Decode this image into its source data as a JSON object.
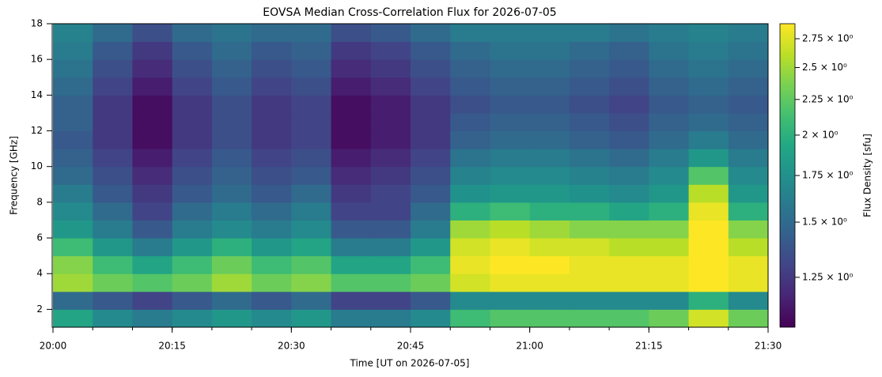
{
  "chart_data": {
    "type": "heatmap",
    "title": "EOVSA Median Cross-Correlation Flux for 2026-07-05",
    "xlabel": "Time [UT on 2026-07-05]",
    "ylabel": "Frequency [GHz]",
    "colorbar_label": "Flux Density [sfu]",
    "colormap": "viridis",
    "color_scale": "log",
    "clim": [
      1.06,
      2.89
    ],
    "cticks": [
      {
        "value": 1.25,
        "label": "1.25 × 10⁰"
      },
      {
        "value": 1.5,
        "label": "1.5 × 10⁰"
      },
      {
        "value": 1.75,
        "label": "1.75 × 10⁰"
      },
      {
        "value": 2,
        "label": "2 × 10⁰"
      },
      {
        "value": 2.25,
        "label": "2.25 × 10⁰"
      },
      {
        "value": 2.5,
        "label": "2.5 × 10⁰"
      },
      {
        "value": 2.75,
        "label": "2.75 × 10⁰"
      }
    ],
    "xlim": [
      "20:00",
      "21:30"
    ],
    "xticks": [
      "20:00",
      "20:15",
      "20:30",
      "20:45",
      "21:00",
      "21:15",
      "21:30"
    ],
    "ylim": [
      1,
      18
    ],
    "yticks": [
      2,
      4,
      6,
      8,
      10,
      12,
      14,
      16,
      18
    ],
    "x": [
      "20:00",
      "20:05",
      "20:10",
      "20:15",
      "20:20",
      "20:25",
      "20:30",
      "20:35",
      "20:40",
      "20:45",
      "20:50",
      "20:55",
      "21:00",
      "21:05",
      "21:10",
      "21:15",
      "21:20",
      "21:25"
    ],
    "y": [
      1,
      2,
      3,
      4,
      5,
      6,
      7,
      8,
      9,
      10,
      11,
      12,
      13,
      14,
      15,
      16,
      17
    ],
    "values": [
      [
        1.9,
        1.7,
        1.6,
        1.7,
        1.8,
        1.7,
        1.8,
        1.6,
        1.6,
        1.7,
        2.1,
        2.2,
        2.2,
        2.2,
        2.2,
        2.3,
        2.7,
        2.3
      ],
      [
        1.5,
        1.4,
        1.3,
        1.4,
        1.5,
        1.4,
        1.5,
        1.3,
        1.3,
        1.4,
        1.7,
        1.7,
        1.7,
        1.7,
        1.7,
        1.7,
        2.0,
        1.7
      ],
      [
        2.5,
        2.3,
        2.2,
        2.3,
        2.5,
        2.3,
        2.4,
        2.2,
        2.2,
        2.3,
        2.7,
        2.8,
        2.8,
        2.8,
        2.8,
        2.8,
        2.9,
        2.8
      ],
      [
        2.4,
        2.1,
        1.9,
        2.1,
        2.3,
        2.1,
        2.2,
        1.9,
        1.9,
        2.1,
        2.8,
        2.9,
        2.9,
        2.8,
        2.8,
        2.8,
        2.9,
        2.8
      ],
      [
        2.1,
        1.8,
        1.6,
        1.8,
        2.0,
        1.8,
        1.9,
        1.6,
        1.6,
        1.8,
        2.7,
        2.8,
        2.7,
        2.7,
        2.6,
        2.6,
        2.9,
        2.6
      ],
      [
        1.8,
        1.6,
        1.4,
        1.6,
        1.7,
        1.6,
        1.7,
        1.4,
        1.4,
        1.6,
        2.5,
        2.6,
        2.5,
        2.4,
        2.4,
        2.4,
        2.9,
        2.4
      ],
      [
        1.7,
        1.5,
        1.3,
        1.5,
        1.6,
        1.5,
        1.6,
        1.3,
        1.3,
        1.5,
        2.0,
        2.1,
        2.0,
        2.0,
        1.9,
        2.0,
        2.8,
        2.0
      ],
      [
        1.6,
        1.4,
        1.25,
        1.4,
        1.5,
        1.4,
        1.5,
        1.25,
        1.3,
        1.4,
        1.75,
        1.8,
        1.8,
        1.75,
        1.7,
        1.8,
        2.6,
        1.8
      ],
      [
        1.5,
        1.35,
        1.2,
        1.35,
        1.45,
        1.35,
        1.4,
        1.2,
        1.25,
        1.35,
        1.65,
        1.7,
        1.7,
        1.65,
        1.6,
        1.7,
        2.2,
        1.7
      ],
      [
        1.45,
        1.3,
        1.15,
        1.3,
        1.4,
        1.3,
        1.35,
        1.15,
        1.2,
        1.3,
        1.55,
        1.6,
        1.6,
        1.55,
        1.5,
        1.6,
        1.8,
        1.6
      ],
      [
        1.4,
        1.25,
        1.1,
        1.25,
        1.35,
        1.25,
        1.3,
        1.1,
        1.15,
        1.25,
        1.45,
        1.5,
        1.5,
        1.45,
        1.4,
        1.5,
        1.6,
        1.5
      ],
      [
        1.45,
        1.25,
        1.1,
        1.25,
        1.35,
        1.25,
        1.3,
        1.1,
        1.15,
        1.25,
        1.4,
        1.45,
        1.45,
        1.4,
        1.35,
        1.45,
        1.5,
        1.45
      ],
      [
        1.45,
        1.25,
        1.1,
        1.25,
        1.35,
        1.25,
        1.3,
        1.1,
        1.15,
        1.25,
        1.35,
        1.4,
        1.4,
        1.35,
        1.3,
        1.4,
        1.45,
        1.4
      ],
      [
        1.5,
        1.3,
        1.15,
        1.3,
        1.4,
        1.3,
        1.35,
        1.15,
        1.2,
        1.3,
        1.4,
        1.45,
        1.45,
        1.4,
        1.35,
        1.45,
        1.5,
        1.45
      ],
      [
        1.55,
        1.35,
        1.2,
        1.35,
        1.45,
        1.35,
        1.4,
        1.2,
        1.25,
        1.35,
        1.45,
        1.5,
        1.5,
        1.45,
        1.4,
        1.5,
        1.55,
        1.5
      ],
      [
        1.6,
        1.4,
        1.25,
        1.4,
        1.5,
        1.4,
        1.45,
        1.25,
        1.3,
        1.4,
        1.5,
        1.55,
        1.55,
        1.5,
        1.45,
        1.55,
        1.6,
        1.55
      ],
      [
        1.65,
        1.5,
        1.35,
        1.5,
        1.55,
        1.5,
        1.5,
        1.35,
        1.4,
        1.5,
        1.6,
        1.6,
        1.6,
        1.6,
        1.55,
        1.6,
        1.65,
        1.6
      ]
    ]
  }
}
